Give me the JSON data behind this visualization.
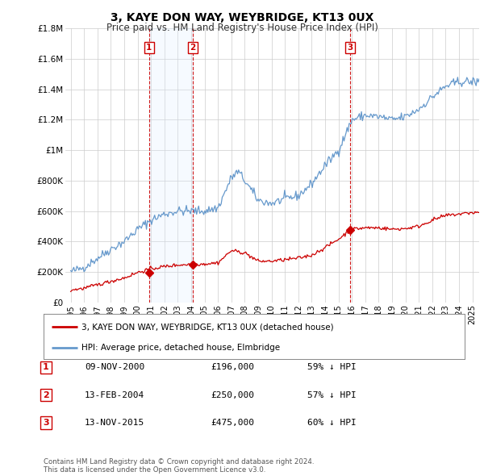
{
  "title": "3, KAYE DON WAY, WEYBRIDGE, KT13 0UX",
  "subtitle": "Price paid vs. HM Land Registry's House Price Index (HPI)",
  "legend_line1": "3, KAYE DON WAY, WEYBRIDGE, KT13 0UX (detached house)",
  "legend_line2": "HPI: Average price, detached house, Elmbridge",
  "hpi_color": "#6699cc",
  "price_color": "#cc0000",
  "vline_color": "#cc0000",
  "shade_color": "#ddeeff",
  "grid_color": "#cccccc",
  "background_color": "#ffffff",
  "plot_bg_color": "#ffffff",
  "ylim": [
    0,
    1800000
  ],
  "yticks": [
    0,
    200000,
    400000,
    600000,
    800000,
    1000000,
    1200000,
    1400000,
    1600000,
    1800000
  ],
  "ytick_labels": [
    "£0",
    "£200K",
    "£400K",
    "£600K",
    "£800K",
    "£1M",
    "£1.2M",
    "£1.4M",
    "£1.6M",
    "£1.8M"
  ],
  "xmin_year": 1994.6,
  "xmax_year": 2025.5,
  "transactions": [
    {
      "date": 2000.86,
      "price": 196000,
      "label": "1"
    },
    {
      "date": 2004.12,
      "price": 250000,
      "label": "2"
    },
    {
      "date": 2015.87,
      "price": 475000,
      "label": "3"
    }
  ],
  "transaction_table": [
    {
      "num": "1",
      "date": "09-NOV-2000",
      "price": "£196,000",
      "hpi": "59% ↓ HPI"
    },
    {
      "num": "2",
      "date": "13-FEB-2004",
      "price": "£250,000",
      "hpi": "57% ↓ HPI"
    },
    {
      "num": "3",
      "date": "13-NOV-2015",
      "price": "£475,000",
      "hpi": "60% ↓ HPI"
    }
  ],
  "footer": "Contains HM Land Registry data © Crown copyright and database right 2024.\nThis data is licensed under the Open Government Licence v3.0.",
  "xtick_years": [
    1995,
    1996,
    1997,
    1998,
    1999,
    2000,
    2001,
    2002,
    2003,
    2004,
    2005,
    2006,
    2007,
    2008,
    2009,
    2010,
    2011,
    2012,
    2013,
    2014,
    2015,
    2016,
    2017,
    2018,
    2019,
    2020,
    2021,
    2022,
    2023,
    2024,
    2025
  ]
}
